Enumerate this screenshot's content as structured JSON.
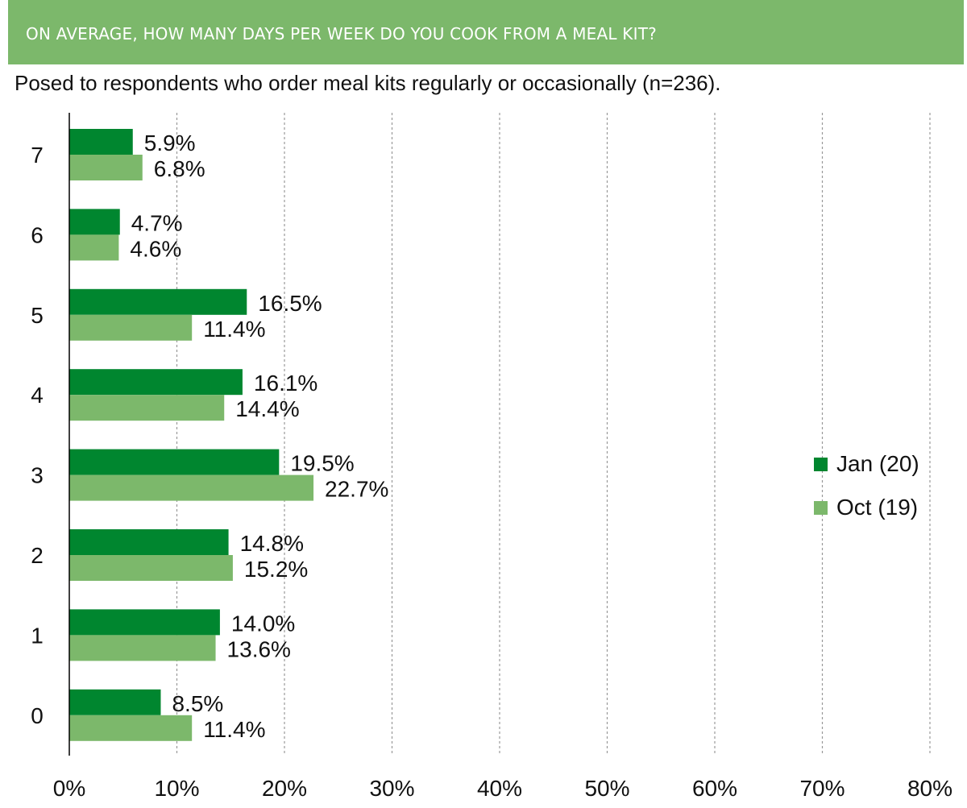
{
  "header": {
    "title": "ON AVERAGE, HOW MANY DAYS PER WEEK DO YOU COOK FROM A MEAL KIT?",
    "subtitle": "Posed to respondents who order meal kits regularly or occasionally (n=236)."
  },
  "colors": {
    "banner": "#7cb86b",
    "jan": "#00862f",
    "oct": "#7cb86b"
  },
  "chart_data": {
    "type": "bar",
    "orientation": "horizontal",
    "categories": [
      "7",
      "6",
      "5",
      "4",
      "3",
      "2",
      "1",
      "0"
    ],
    "series": [
      {
        "name": "Jan (20)",
        "values": [
          5.9,
          4.7,
          16.5,
          16.1,
          19.5,
          14.8,
          14.0,
          8.5
        ],
        "labels": [
          "5.9%",
          "4.7%",
          "16.5%",
          "16.1%",
          "19.5%",
          "14.8%",
          "14.0%",
          "8.5%"
        ]
      },
      {
        "name": "Oct (19)",
        "values": [
          6.8,
          4.6,
          11.4,
          14.4,
          22.7,
          15.2,
          13.6,
          11.4
        ],
        "labels": [
          "6.8%",
          "4.6%",
          "11.4%",
          "14.4%",
          "22.7%",
          "15.2%",
          "13.6%",
          "11.4%"
        ]
      }
    ],
    "xlim": [
      0,
      80
    ],
    "xticks": [
      "0%",
      "10%",
      "20%",
      "30%",
      "40%",
      "50%",
      "60%",
      "70%",
      "80%"
    ],
    "grid": "vertical dashed",
    "legend_position": "right"
  }
}
